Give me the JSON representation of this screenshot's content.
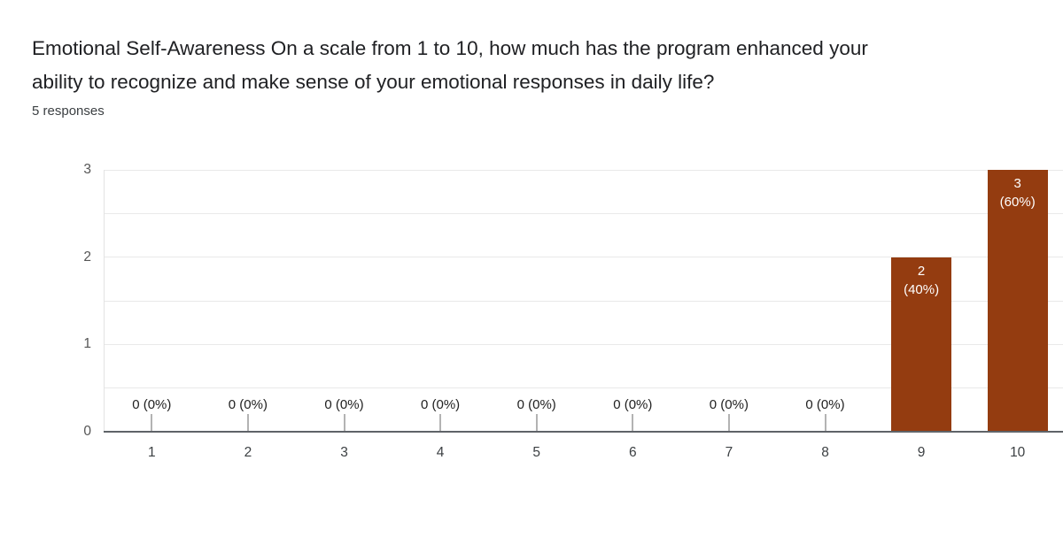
{
  "header": {
    "title_lines": [
      "Emotional Self-Awareness On a scale from 1 to 10, how much has the program enhanced your",
      "ability to recognize and make sense of your emotional responses in daily life?"
    ],
    "title_full": "Emotional Self-Awareness On a scale from 1 to 10, how much has the program enhanced your ability to recognize and make sense of your emotional responses in daily life?",
    "responses_count": "5 responses"
  },
  "chart_data": {
    "type": "bar",
    "title": "Emotional Self-Awareness On a scale from 1 to 10, how much has the program enhanced your ability to recognize and make sense of your emotional responses in daily life?",
    "subtitle": "5 responses",
    "categories": [
      "1",
      "2",
      "3",
      "4",
      "5",
      "6",
      "7",
      "8",
      "9",
      "10"
    ],
    "values": [
      0,
      0,
      0,
      0,
      0,
      0,
      0,
      0,
      2,
      3
    ],
    "percent_labels": [
      "0%",
      "0%",
      "0%",
      "0%",
      "0%",
      "0%",
      "0%",
      "0%",
      "40%",
      "60%"
    ],
    "zero_annotation": "0 (0%)",
    "xlabel": "",
    "ylabel": "",
    "yticks": [
      0,
      1,
      2,
      3
    ],
    "ylim": [
      0,
      3
    ],
    "grid": true,
    "minor_grid_step": 0.5,
    "legend": "none",
    "colors": {
      "bar": "#943c10",
      "bar_label_text": "#ffffff",
      "gridline": "#e9e9e9",
      "axis_line": "#5f6368",
      "axis_text": "#3c4043",
      "annotation_text": "#212121"
    }
  }
}
